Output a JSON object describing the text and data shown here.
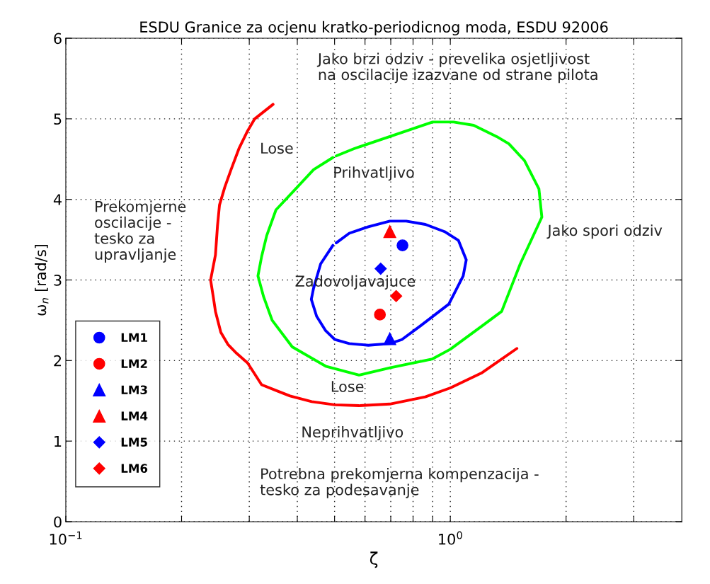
{
  "chart_data": {
    "type": "line",
    "title": "ESDU Granice za ocjenu kratko-periodicnog moda, ESDU 92006",
    "xlabel": "ζ",
    "ylabel": "ω$_{n}$ [rad/s]",
    "log": "x",
    "grid": true,
    "legend": "bottom left",
    "xlim": [
      0.1,
      4
    ],
    "ylim": [
      0,
      6
    ],
    "xticks": [
      {
        "value": 0.1,
        "label": "10$^{−1}$"
      },
      {
        "value": 0.2,
        "label": null
      },
      {
        "value": 0.3,
        "label": null
      },
      {
        "value": 0.4,
        "label": null
      },
      {
        "value": 0.5,
        "label": null
      },
      {
        "value": 0.6,
        "label": null
      },
      {
        "value": 0.7,
        "label": null
      },
      {
        "value": 0.8,
        "label": null
      },
      {
        "value": 0.9,
        "label": null
      },
      {
        "value": 1,
        "label": "10$^{0}$"
      },
      {
        "value": 2,
        "label": null
      },
      {
        "value": 3,
        "label": null
      }
    ],
    "yticks": [
      0,
      1,
      2,
      3,
      4,
      5,
      6
    ],
    "series": [
      {
        "color": "#ff0000",
        "x": [
          0.346,
          0.31,
          0.297,
          0.282,
          0.269,
          0.259,
          0.251,
          0.248,
          0.245,
          0.238,
          0.242,
          0.245,
          0.253,
          0.264,
          0.278,
          0.297,
          0.323,
          0.356,
          0.383,
          0.436,
          0.501,
          0.579,
          0.696,
          0.861,
          1.0,
          1.21,
          1.49
        ],
        "values": [
          5.18,
          5.0,
          4.85,
          4.63,
          4.37,
          4.15,
          3.93,
          3.67,
          3.31,
          3.0,
          2.78,
          2.61,
          2.35,
          2.2,
          2.09,
          1.97,
          1.7,
          1.62,
          1.56,
          1.49,
          1.45,
          1.44,
          1.46,
          1.55,
          1.66,
          1.85,
          2.15
        ]
      },
      {
        "color": "#00ff00",
        "x": [
          0.495,
          0.441,
          0.396,
          0.352,
          0.333,
          0.323,
          0.316,
          0.327,
          0.344,
          0.388,
          0.474,
          0.579,
          0.696,
          0.899,
          1.0,
          1.21,
          1.36,
          1.52,
          1.73,
          1.7,
          1.56,
          1.42,
          1.32,
          1.15,
          1.02,
          0.899,
          0.748,
          0.562,
          0.505
        ],
        "values": [
          4.52,
          4.37,
          4.13,
          3.87,
          3.55,
          3.29,
          3.05,
          2.79,
          2.5,
          2.17,
          1.93,
          1.82,
          1.91,
          2.02,
          2.14,
          2.43,
          2.61,
          3.2,
          3.78,
          4.13,
          4.48,
          4.69,
          4.78,
          4.92,
          4.96,
          4.96,
          4.83,
          4.63,
          4.54
        ]
      },
      {
        "color": "#0000ff",
        "x": [
          0.495,
          0.46,
          0.441,
          0.435,
          0.449,
          0.474,
          0.501,
          0.546,
          0.612,
          0.696,
          0.748,
          0.836,
          0.991,
          1.08,
          1.1,
          1.05,
          0.966,
          0.861,
          0.768,
          0.696,
          0.612,
          0.546,
          0.505
        ],
        "values": [
          3.43,
          3.2,
          2.9,
          2.76,
          2.55,
          2.37,
          2.26,
          2.21,
          2.19,
          2.21,
          2.26,
          2.43,
          2.7,
          3.05,
          3.25,
          3.49,
          3.6,
          3.69,
          3.73,
          3.73,
          3.66,
          3.58,
          3.46
        ]
      },
      {
        "type": "scatter",
        "name": "LM1",
        "color": "#0000ff",
        "marker": "circle",
        "x": [
          0.751
        ],
        "values": [
          3.43
        ]
      },
      {
        "type": "scatter",
        "name": "LM2",
        "color": "#ff0000",
        "marker": "circle",
        "x": [
          0.656
        ],
        "values": [
          2.57
        ]
      },
      {
        "type": "scatter",
        "name": "LM3",
        "color": "#0000ff",
        "marker": "triangle",
        "x": [
          0.696
        ],
        "values": [
          2.27
        ]
      },
      {
        "type": "scatter",
        "name": "LM4",
        "color": "#ff0000",
        "marker": "triangle",
        "x": [
          0.696
        ],
        "values": [
          3.6
        ]
      },
      {
        "type": "scatter",
        "name": "LM5",
        "color": "#0000ff",
        "marker": "diamond",
        "x": [
          0.659
        ],
        "values": [
          3.14
        ]
      },
      {
        "type": "scatter",
        "name": "LM6",
        "color": "#ff0000",
        "marker": "diamond",
        "x": [
          0.723
        ],
        "values": [
          2.8
        ]
      }
    ],
    "annotations": [
      "Jako brzi odziv - prevelika osjetljivost\nna oscilacije izazvane od strane pilota",
      "Lose",
      "Prihvatljivo",
      "Prekomjerne\noscilacije -\ntesko za\nupravljanje",
      "Jako spori odziv",
      "Zadovoljavajuce",
      "Lose",
      "Neprihvatljivo",
      "Potrebna prekomjerna kompenzacija -\ntesko za podesavanje"
    ]
  }
}
